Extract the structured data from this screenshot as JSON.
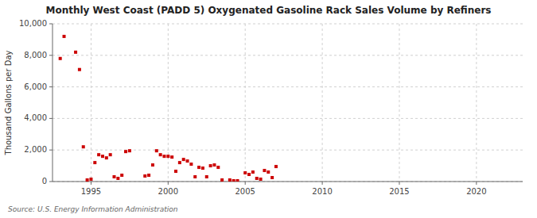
{
  "chart_data": {
    "type": "scatter",
    "title": "Monthly West Coast (PADD 5) Oxygenated Gasoline Rack Sales Volume by Refiners",
    "ylabel": "Thousand Gallons per Day",
    "annotations": [
      "Source: U.S. Energy Information Administration"
    ],
    "color": "#cc0000",
    "marker": "square",
    "grid": true,
    "xlim": [
      1992.5,
      2023
    ],
    "ylim": [
      0,
      10000
    ],
    "xticks": [
      1995,
      2000,
      2005,
      2010,
      2015,
      2020
    ],
    "yticks": [
      0,
      {
        "value": 2000,
        "label": "2,000"
      },
      {
        "value": 4000,
        "label": "4,000"
      },
      {
        "value": 6000,
        "label": "6,000"
      },
      {
        "value": 8000,
        "label": "8,000"
      },
      {
        "value": 10000,
        "label": "10,000"
      }
    ],
    "x": [
      1993.0,
      1993.25,
      1994.0,
      1994.25,
      1994.5,
      1994.75,
      1995.0,
      1995.25,
      1995.5,
      1995.75,
      1996.0,
      1996.25,
      1996.5,
      1996.75,
      1997.0,
      1997.25,
      1997.5,
      1998.5,
      1998.75,
      1999.0,
      1999.25,
      1999.5,
      1999.75,
      2000.0,
      2000.25,
      2000.5,
      2000.75,
      2001.0,
      2001.25,
      2001.5,
      2001.75,
      2002.0,
      2002.25,
      2002.5,
      2002.75,
      2003.0,
      2003.25,
      2003.5,
      2004.0,
      2004.25,
      2004.5,
      2005.0,
      2005.25,
      2005.5,
      2005.75,
      2006.0,
      2006.25,
      2006.5,
      2006.75,
      2007.0
    ],
    "values": [
      7800,
      9200,
      8200,
      7100,
      2200,
      100,
      150,
      1200,
      1700,
      1600,
      1500,
      1700,
      300,
      200,
      400,
      1900,
      1950,
      350,
      400,
      1050,
      1950,
      1700,
      1600,
      1600,
      1550,
      650,
      1200,
      1400,
      1300,
      1100,
      300,
      900,
      850,
      300,
      1000,
      1050,
      900,
      100,
      100,
      50,
      50,
      550,
      450,
      600,
      200,
      150,
      700,
      600,
      250,
      950
    ]
  }
}
